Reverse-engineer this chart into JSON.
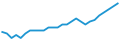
{
  "x": [
    0,
    1,
    2,
    3,
    4,
    5,
    6,
    7,
    8,
    9,
    10,
    11,
    12,
    13,
    14,
    15,
    16,
    17,
    18,
    19,
    20,
    21,
    22,
    23,
    24,
    25
  ],
  "y": [
    6.0,
    5.5,
    4.0,
    5.0,
    4.0,
    5.5,
    6.5,
    6.5,
    6.5,
    6.5,
    7.5,
    7.5,
    7.5,
    8.5,
    8.5,
    9.5,
    10.5,
    9.5,
    8.5,
    9.5,
    10.0,
    11.5,
    12.5,
    13.5,
    14.5,
    15.5
  ],
  "line_color": "#1e96d2",
  "linewidth": 1.3,
  "background_color": "#ffffff",
  "ylim": [
    2.0,
    17.0
  ],
  "xlim": [
    -0.5,
    25.5
  ]
}
